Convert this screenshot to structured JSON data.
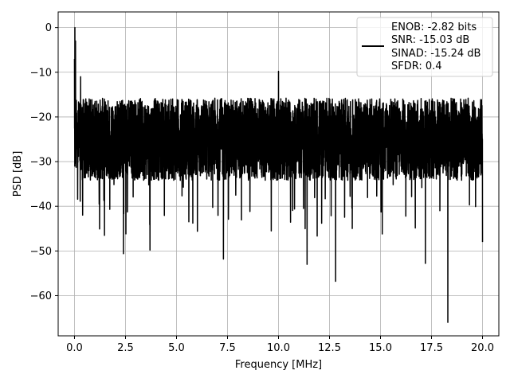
{
  "chart_data": {
    "type": "line",
    "xlabel": "Frequency [MHz]",
    "ylabel": "PSD [dB]",
    "xlim": [
      -0.8,
      20.8
    ],
    "ylim": [
      -69,
      3.5
    ],
    "xticks": [
      0.0,
      2.5,
      5.0,
      7.5,
      10.0,
      12.5,
      15.0,
      17.5,
      20.0
    ],
    "xtick_labels": [
      "0.0",
      "2.5",
      "5.0",
      "7.5",
      "10.0",
      "12.5",
      "15.0",
      "17.5",
      "20.0"
    ],
    "yticks": [
      0,
      -10,
      -20,
      -30,
      -40,
      -50,
      -60
    ],
    "ytick_labels": [
      "0",
      "−10",
      "−20",
      "−30",
      "−40",
      "−50",
      "−60"
    ],
    "grid": true,
    "legend_position": "top-right",
    "legend_lines": [
      "ENOB: -2.82 bits",
      "SNR: -15.03 dB",
      "SINAD: -15.24 dB",
      "SFDR: 0.4"
    ],
    "series": [
      {
        "color": "#000000",
        "noise_floor": {
          "x_range": [
            0.0,
            20.0
          ],
          "typical_band_db": [
            -33,
            -17
          ],
          "mean_db": -25,
          "points": 4000
        },
        "key_points": [
          {
            "x": 0.0,
            "y": -7
          },
          {
            "x": 0.02,
            "y": 0
          },
          {
            "x": 0.05,
            "y": -3
          },
          {
            "x": 0.1,
            "y": -26
          },
          {
            "x": 0.3,
            "y": -11
          },
          {
            "x": 0.4,
            "y": -42
          },
          {
            "x": 2.4,
            "y": -50.6
          },
          {
            "x": 3.7,
            "y": -49.8
          },
          {
            "x": 7.3,
            "y": -51.8
          },
          {
            "x": 10.0,
            "y": -9.8
          },
          {
            "x": 11.4,
            "y": -53
          },
          {
            "x": 12.8,
            "y": -56.8
          },
          {
            "x": 17.2,
            "y": -52.8
          },
          {
            "x": 18.3,
            "y": -66
          },
          {
            "x": 20.0,
            "y": -48
          }
        ]
      }
    ]
  }
}
